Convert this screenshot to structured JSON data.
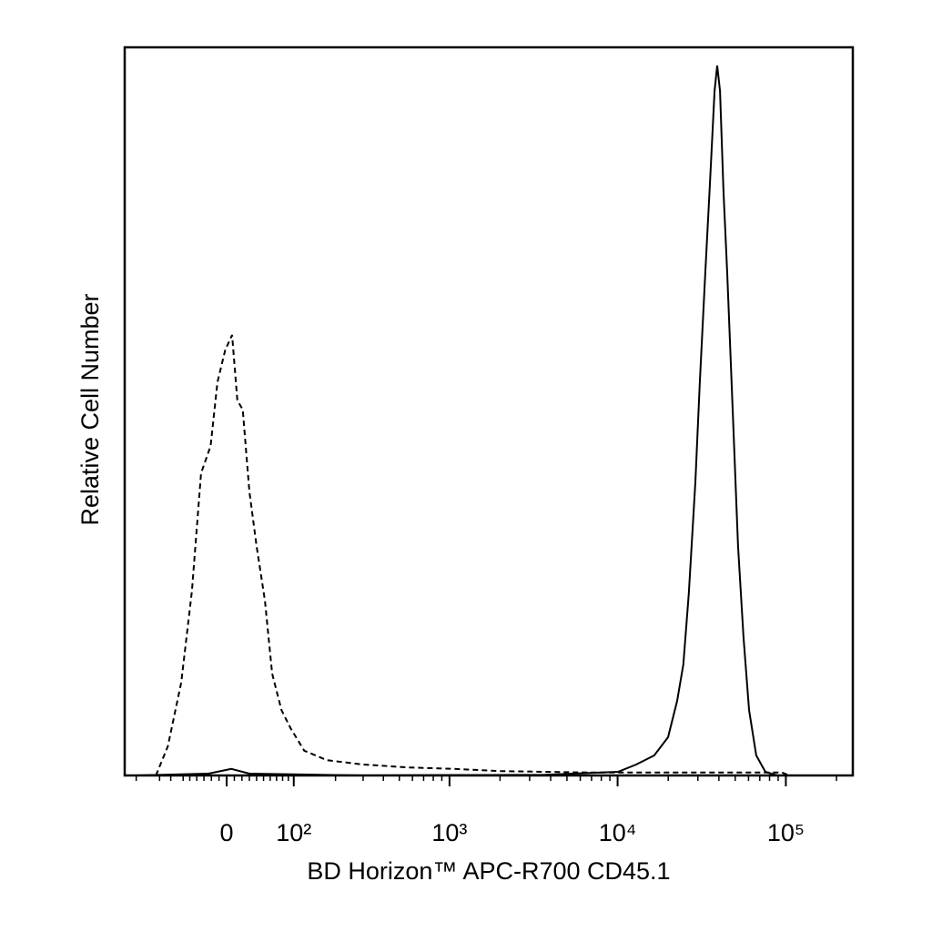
{
  "chart_data": {
    "type": "line",
    "xlabel": "BD Horizon™ APC-R700 CD45.1",
    "ylabel": "Relative Cell Number",
    "xscale": "biexponential",
    "xlim": [
      -180,
      250000
    ],
    "ylim": [
      0,
      100
    ],
    "xticks": [
      0,
      {
        "value": 100,
        "label": "10²"
      },
      {
        "value": 1000,
        "label": "10³"
      },
      {
        "value": 10000,
        "label": "10⁴"
      },
      {
        "value": 100000,
        "label": "10⁵"
      }
    ],
    "xminorticks": [
      -150,
      -100,
      -80,
      -60,
      -50,
      -40,
      -30,
      -20,
      -10,
      10,
      20,
      30,
      40,
      50,
      60,
      70,
      80,
      90,
      200,
      300,
      400,
      500,
      600,
      700,
      800,
      900,
      2000,
      3000,
      4000,
      5000,
      6000,
      7000,
      8000,
      9000,
      20000,
      30000,
      40000,
      50000,
      60000,
      70000,
      80000,
      90000,
      200000
    ],
    "series": [
      {
        "color": "#000000",
        "dash": false,
        "x": [
          -151,
          -24,
          6,
          30,
          300,
          3700,
          10050,
          12900,
          16500,
          19950,
          22600,
          24600,
          26500,
          29000,
          30800,
          33200,
          35400,
          37700,
          39100,
          40600,
          42600,
          44800,
          48300,
          52000,
          56000,
          60400,
          66700,
          75500,
          88800,
          200000
        ],
        "values": [
          0,
          0.25,
          0.9,
          0.25,
          0,
          0.1,
          0.5,
          1.5,
          2.75,
          5.25,
          10.25,
          15.25,
          25,
          40.25,
          54,
          69,
          81.5,
          94,
          97.5,
          94,
          80.25,
          69,
          50.25,
          31.5,
          19,
          9,
          2.75,
          0.5,
          0,
          0
        ]
      },
      {
        "color": "#000000",
        "dash": true,
        "x": [
          -107,
          -85,
          -63,
          -47,
          -34,
          -21,
          -12,
          -2,
          7,
          14,
          21,
          30,
          40,
          52,
          63,
          78,
          94,
          121,
          175,
          300,
          570,
          1070,
          1990,
          6900,
          12900,
          44800,
          94700,
          105000
        ],
        "values": [
          0,
          4,
          12.75,
          25.25,
          41.5,
          45.25,
          54,
          58.4,
          60.5,
          51.5,
          50.25,
          39,
          31.5,
          24,
          14,
          9,
          6.5,
          3.4,
          2.1,
          1.5,
          1.1,
          0.9,
          0.6,
          0.4,
          0.4,
          0.4,
          0.4,
          0
        ]
      }
    ]
  }
}
